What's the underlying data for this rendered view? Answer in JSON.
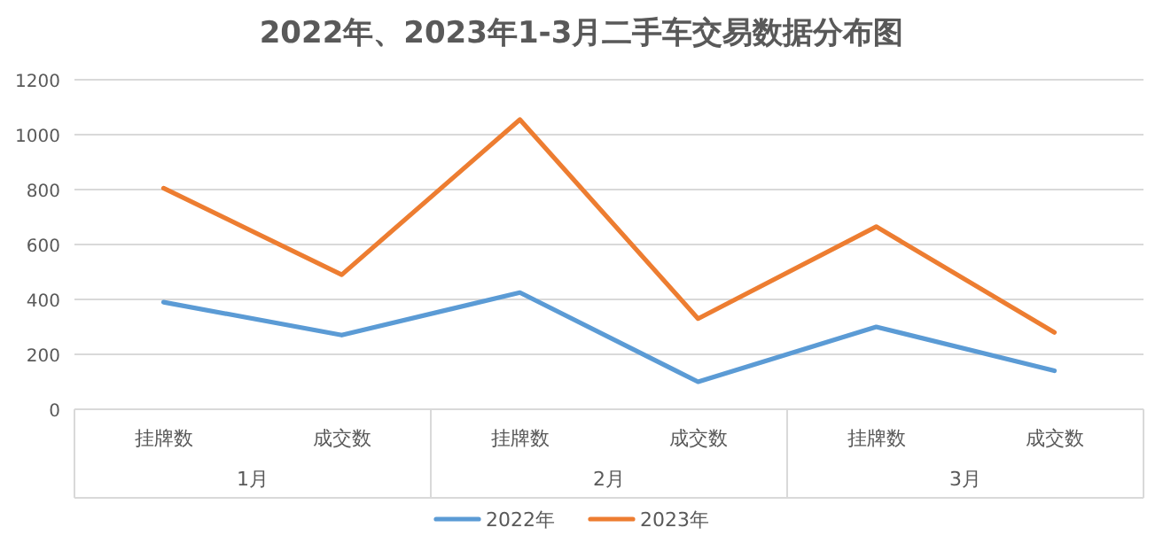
{
  "chart_data": {
    "type": "line",
    "title": "2022年、2023年1-3月二手车交易数据分布图",
    "categories": [
      "挂牌数",
      "成交数",
      "挂牌数",
      "成交数",
      "挂牌数",
      "成交数"
    ],
    "annotations": [
      "1月",
      "2月",
      "3月"
    ],
    "series": [
      {
        "name": "2022年",
        "color": "#5b9bd5",
        "values": [
          390,
          270,
          425,
          100,
          300,
          140
        ]
      },
      {
        "name": "2023年",
        "color": "#ed7d31",
        "values": [
          805,
          490,
          1055,
          330,
          665,
          280
        ]
      }
    ],
    "ylim": [
      0,
      1200
    ],
    "yticks": [
      0,
      200,
      400,
      600,
      800,
      1000,
      1200
    ],
    "grid": "y",
    "legend": "bottom",
    "marker": "none",
    "line_style": "solid"
  }
}
